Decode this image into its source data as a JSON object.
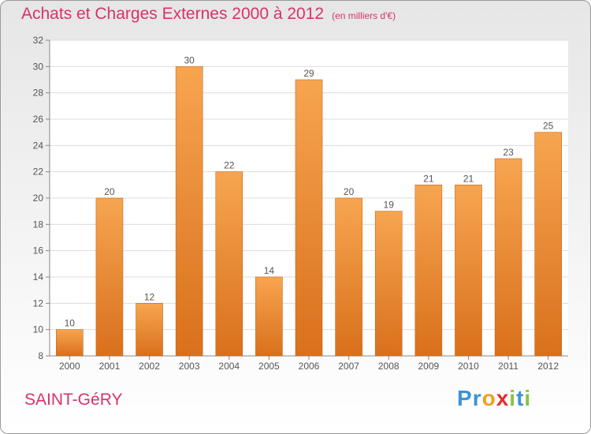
{
  "header": {
    "title": "Achats et Charges Externes 2000 à 2012",
    "unit": "(en milliers d'€)"
  },
  "footer": {
    "commune": "SAINT-GéRY",
    "brand": {
      "letters": [
        "P",
        "r",
        "o",
        "x",
        "i",
        "t",
        "i"
      ],
      "colors": [
        "#3a93d6",
        "#3a93d6",
        "#f0a020",
        "#e0302a",
        "#8cc040",
        "#3a93d6",
        "#8cc040"
      ]
    }
  },
  "colors": {
    "bar_top": "#f7a550",
    "bar_bottom": "#d9701c",
    "title": "#d8326a"
  },
  "chart_data": {
    "type": "bar",
    "categories": [
      "2000",
      "2001",
      "2002",
      "2003",
      "2004",
      "2005",
      "2006",
      "2007",
      "2008",
      "2009",
      "2010",
      "2011",
      "2012"
    ],
    "values": [
      10,
      20,
      12,
      30,
      22,
      14,
      29,
      20,
      19,
      21,
      21,
      23,
      25
    ],
    "ylim": [
      8,
      32
    ],
    "yticks": [
      8,
      10,
      12,
      14,
      16,
      18,
      20,
      22,
      24,
      26,
      28,
      30,
      32
    ],
    "grid": true,
    "data_labels": true
  }
}
